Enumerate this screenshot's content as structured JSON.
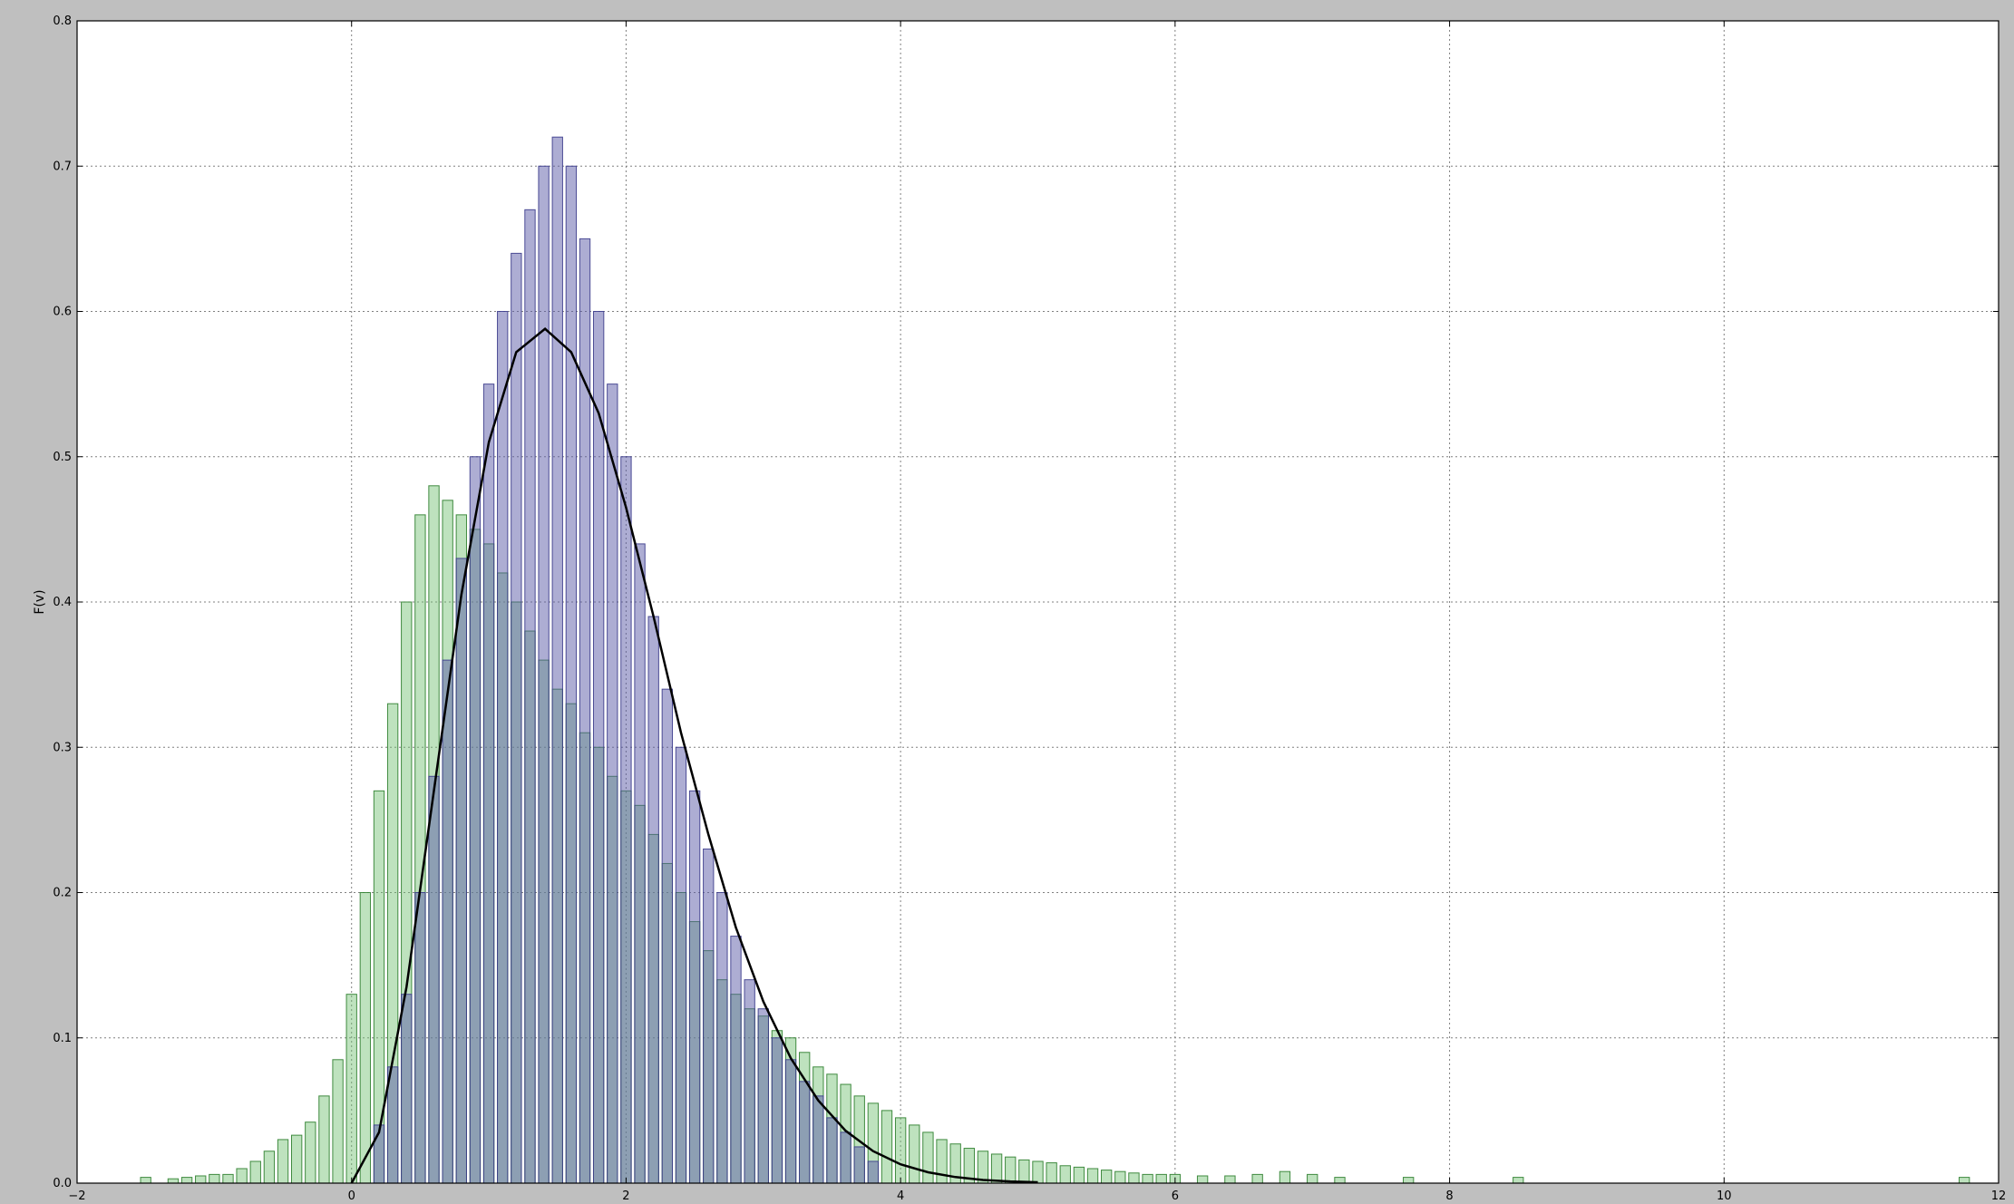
{
  "chart_data": {
    "type": "bar",
    "title": "",
    "xlabel": "",
    "ylabel": "F(v)",
    "xlim": [
      -2,
      12
    ],
    "ylim": [
      0,
      0.8
    ],
    "grid": true,
    "x_ticks": [
      -2,
      0,
      2,
      4,
      6,
      8,
      10,
      12
    ],
    "x_tick_labels": [
      "−2",
      "0",
      "2",
      "4",
      "6",
      "8",
      "10",
      "12"
    ],
    "y_ticks": [
      0.0,
      0.1,
      0.2,
      0.3,
      0.4,
      0.5,
      0.6,
      0.7,
      0.8
    ],
    "y_tick_labels": [
      "0.0",
      "0.1",
      "0.2",
      "0.3",
      "0.4",
      "0.5",
      "0.6",
      "0.7",
      "0.8"
    ],
    "colors": {
      "background": "#bfbfbf",
      "plot_area": "#ffffff",
      "green_fill": "#6fbf6f",
      "green_edge": "#2f7f2f",
      "blue_fill": "#5b5ba8",
      "blue_edge": "#3c3c8c",
      "curve": "#000000",
      "grid": "#808080"
    },
    "series": [
      {
        "kind": "histogram",
        "color": "green",
        "bin_width": 0.025,
        "x": [
          -1.5,
          -1.3,
          -1.2,
          -1.1,
          -1.0,
          -0.9,
          -0.8,
          -0.7,
          -0.6,
          -0.5,
          -0.4,
          -0.3,
          -0.2,
          -0.1,
          0.0,
          0.1,
          0.2,
          0.3,
          0.4,
          0.5,
          0.6,
          0.7,
          0.8,
          0.9,
          1.0,
          1.1,
          1.2,
          1.3,
          1.4,
          1.5,
          1.6,
          1.7,
          1.8,
          1.9,
          2.0,
          2.1,
          2.2,
          2.3,
          2.4,
          2.5,
          2.6,
          2.7,
          2.8,
          2.9,
          3.0,
          3.1,
          3.2,
          3.3,
          3.4,
          3.5,
          3.6,
          3.7,
          3.8,
          3.9,
          4.0,
          4.1,
          4.2,
          4.3,
          4.4,
          4.5,
          4.6,
          4.7,
          4.8,
          4.9,
          5.0,
          5.1,
          5.2,
          5.3,
          5.4,
          5.5,
          5.6,
          5.7,
          5.8,
          5.9,
          6.0,
          6.2,
          6.4,
          6.6,
          6.8,
          7.0,
          7.2,
          7.7,
          8.5,
          11.75
        ],
        "y": [
          0.004,
          0.003,
          0.004,
          0.005,
          0.006,
          0.006,
          0.01,
          0.015,
          0.022,
          0.03,
          0.033,
          0.042,
          0.06,
          0.085,
          0.13,
          0.2,
          0.27,
          0.33,
          0.4,
          0.46,
          0.48,
          0.47,
          0.46,
          0.45,
          0.44,
          0.42,
          0.4,
          0.38,
          0.36,
          0.34,
          0.33,
          0.31,
          0.3,
          0.28,
          0.27,
          0.26,
          0.24,
          0.22,
          0.2,
          0.18,
          0.16,
          0.14,
          0.13,
          0.12,
          0.115,
          0.105,
          0.1,
          0.09,
          0.08,
          0.075,
          0.068,
          0.06,
          0.055,
          0.05,
          0.045,
          0.04,
          0.035,
          0.03,
          0.027,
          0.024,
          0.022,
          0.02,
          0.018,
          0.016,
          0.015,
          0.014,
          0.012,
          0.011,
          0.01,
          0.009,
          0.008,
          0.007,
          0.006,
          0.006,
          0.006,
          0.005,
          0.005,
          0.006,
          0.008,
          0.006,
          0.004,
          0.004,
          0.004,
          0.004
        ]
      },
      {
        "kind": "histogram",
        "color": "blue",
        "bin_width": 0.025,
        "x": [
          0.2,
          0.3,
          0.4,
          0.5,
          0.6,
          0.7,
          0.8,
          0.9,
          1.0,
          1.1,
          1.2,
          1.3,
          1.4,
          1.5,
          1.6,
          1.7,
          1.8,
          1.9,
          2.0,
          2.1,
          2.2,
          2.3,
          2.4,
          2.5,
          2.6,
          2.7,
          2.8,
          2.9,
          3.0,
          3.1,
          3.2,
          3.3,
          3.4,
          3.5,
          3.6,
          3.7,
          3.8
        ],
        "y": [
          0.04,
          0.08,
          0.13,
          0.2,
          0.28,
          0.36,
          0.43,
          0.5,
          0.55,
          0.6,
          0.64,
          0.67,
          0.7,
          0.72,
          0.7,
          0.65,
          0.6,
          0.55,
          0.5,
          0.44,
          0.39,
          0.34,
          0.3,
          0.27,
          0.23,
          0.2,
          0.17,
          0.14,
          0.12,
          0.1,
          0.085,
          0.07,
          0.06,
          0.045,
          0.035,
          0.025,
          0.015
        ]
      },
      {
        "kind": "line",
        "color": "black",
        "x": [
          0.0,
          0.2,
          0.4,
          0.6,
          0.8,
          1.0,
          1.2,
          1.41,
          1.6,
          1.8,
          2.0,
          2.2,
          2.4,
          2.6,
          2.8,
          3.0,
          3.2,
          3.4,
          3.6,
          3.8,
          4.0,
          4.2,
          4.4,
          4.6,
          4.8,
          5.0
        ],
        "y": [
          0.0,
          0.035,
          0.135,
          0.27,
          0.405,
          0.51,
          0.572,
          0.588,
          0.572,
          0.53,
          0.465,
          0.39,
          0.31,
          0.24,
          0.176,
          0.125,
          0.086,
          0.057,
          0.036,
          0.022,
          0.013,
          0.0075,
          0.0042,
          0.0022,
          0.0012,
          0.0006
        ]
      }
    ]
  }
}
